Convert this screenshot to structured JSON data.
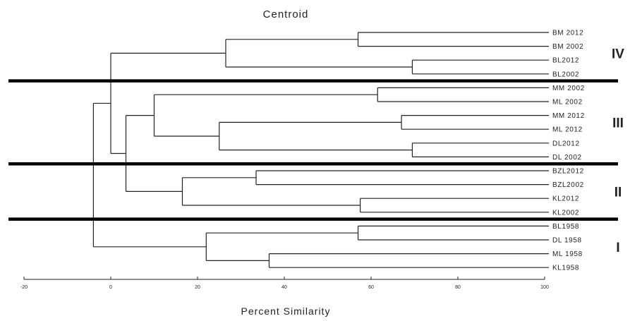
{
  "chart_data": {
    "type": "dendrogram",
    "title": "Centroid",
    "xlabel": "Percent Similarity",
    "xlim": [
      -20,
      100
    ],
    "ticks": [
      "-20",
      "0",
      "20",
      "40",
      "60",
      "80",
      "100"
    ],
    "leaves": [
      "BM 2012",
      "BM 2002",
      "BL2012",
      "BL2002",
      "MM 2002",
      "ML 2002",
      "MM 2012",
      "ML 2012",
      "DL2012",
      "DL 2002",
      "BZL2012",
      "BZL2002",
      "KL2012",
      "KL2002",
      "BL1958",
      "DL 1958",
      "ML 1958",
      "KL1958"
    ],
    "merges": [
      {
        "a": "L0",
        "b": "L1",
        "similarity": 57
      },
      {
        "a": "L2",
        "b": "L3",
        "similarity": 69.5
      },
      {
        "a": "N0",
        "b": "N1",
        "similarity": 26.5
      },
      {
        "a": "L4",
        "b": "L5",
        "similarity": 61.5
      },
      {
        "a": "L6",
        "b": "L7",
        "similarity": 67
      },
      {
        "a": "L8",
        "b": "L9",
        "similarity": 69.5
      },
      {
        "a": "N4",
        "b": "N5",
        "similarity": 25
      },
      {
        "a": "N3",
        "b": "N6",
        "similarity": 10
      },
      {
        "a": "L10",
        "b": "L11",
        "similarity": 33.5
      },
      {
        "a": "L12",
        "b": "L13",
        "similarity": 57.5
      },
      {
        "a": "N8",
        "b": "N9",
        "similarity": 16.5
      },
      {
        "a": "N7",
        "b": "N10",
        "similarity": 3.5
      },
      {
        "a": "N2",
        "b": "N11",
        "similarity": 0
      },
      {
        "a": "L14",
        "b": "L15",
        "similarity": 57
      },
      {
        "a": "L16",
        "b": "L17",
        "similarity": 36.5
      },
      {
        "a": "N13",
        "b": "N14",
        "similarity": 22
      },
      {
        "a": "N12",
        "b": "N15",
        "similarity": -4
      }
    ],
    "groups": [
      {
        "label": "IV",
        "first": 0,
        "last": 3
      },
      {
        "label": "III",
        "first": 4,
        "last": 9
      },
      {
        "label": "II",
        "first": 10,
        "last": 13
      },
      {
        "label": "I",
        "first": 14,
        "last": 17
      }
    ]
  }
}
